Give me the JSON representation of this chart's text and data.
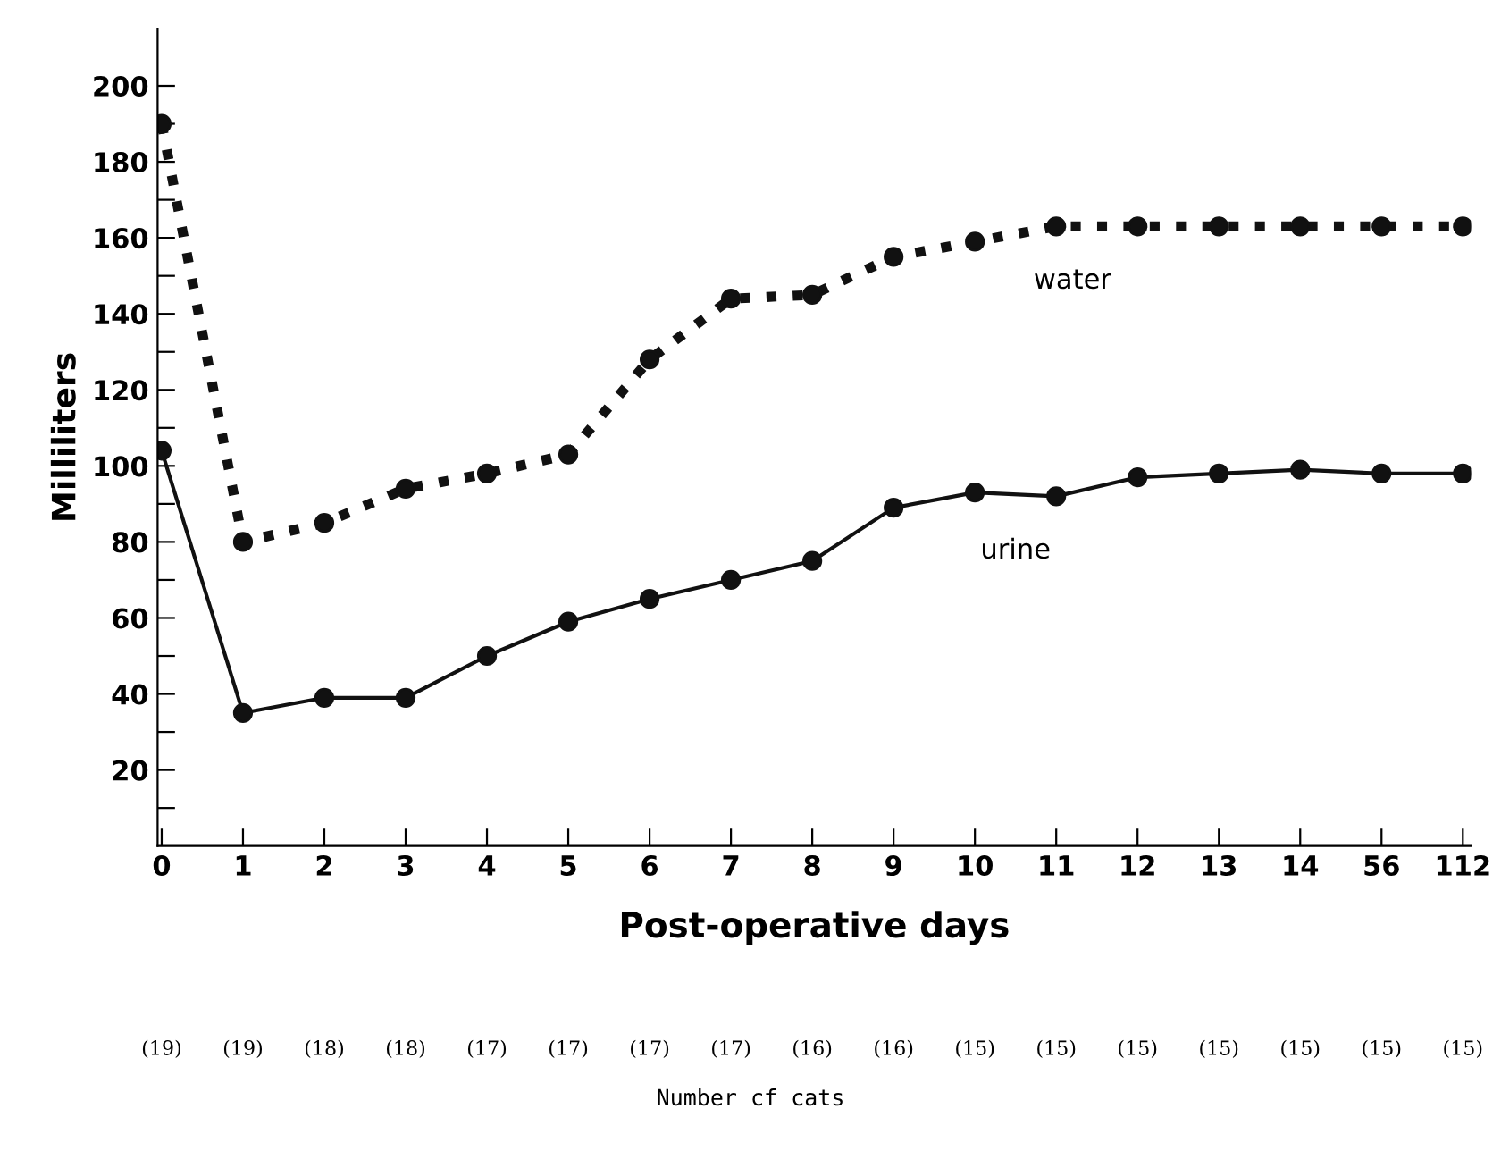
{
  "chart_data": {
    "type": "line",
    "xlabel": "Post-operative days",
    "ylabel": "Milliliters",
    "categories": [
      "0",
      "1",
      "2",
      "3",
      "4",
      "5",
      "6",
      "7",
      "8",
      "9",
      "10",
      "11",
      "12",
      "13",
      "14",
      "56",
      "112"
    ],
    "series": [
      {
        "name": "water",
        "color": "#111111",
        "line_style": "dotted",
        "values": [
          190,
          80,
          85,
          94,
          98,
          103,
          128,
          144,
          145,
          155,
          159,
          163,
          163,
          163,
          163,
          163,
          163
        ]
      },
      {
        "name": "urine",
        "color": "#111111",
        "line_style": "solid",
        "values": [
          104,
          35,
          39,
          39,
          50,
          59,
          65,
          70,
          75,
          89,
          93,
          92,
          97,
          98,
          99,
          98,
          98
        ]
      }
    ],
    "marker": "circle",
    "grid": false,
    "legend": false,
    "ylim": [
      0,
      215
    ],
    "yticks": [
      {
        "value": 10,
        "label": null
      },
      20,
      {
        "value": 30,
        "label": null
      },
      40,
      {
        "value": 50,
        "label": null
      },
      60,
      {
        "value": 70,
        "label": null
      },
      80,
      {
        "value": 90,
        "label": null
      },
      100,
      {
        "value": 110,
        "label": null
      },
      120,
      {
        "value": 130,
        "label": null
      },
      140,
      {
        "value": 150,
        "label": null
      },
      160,
      {
        "value": 170,
        "label": null
      },
      180,
      {
        "value": 190,
        "label": null
      },
      200
    ],
    "annotations": [
      "(19)",
      "(19)",
      "(18)",
      "(18)",
      "(17)",
      "(17)",
      "(17)",
      "(17)",
      "(16)",
      "(16)",
      "(15)",
      "(15)",
      "(15)",
      "(15)",
      "(15)",
      "(15)",
      "(15)",
      "Number cf cats"
    ]
  }
}
